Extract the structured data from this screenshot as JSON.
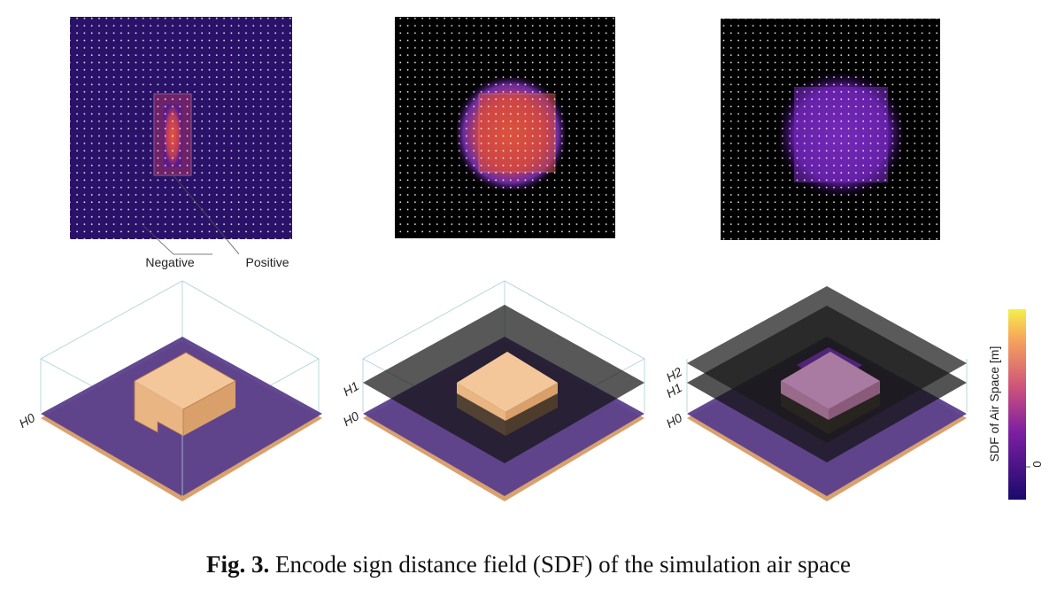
{
  "heatmap_labels": {
    "negative": "Negative",
    "positive": "Positive"
  },
  "levels": {
    "h0": "H0",
    "h1": "H1",
    "h2": "H2"
  },
  "colorbar": {
    "label": "SDF of Air Space [m]",
    "tick": "0"
  },
  "caption": {
    "prefix": "Fig. 3.",
    "text": "Encode sign distance field (SDF) of the simulation air space"
  },
  "colors": {
    "sdf_low": "#1a0a6b",
    "sdf_mid": "#b0299a",
    "sdf_high": "#f4e84a",
    "building": "#f0bf8e",
    "ground": "#d9a16e"
  }
}
